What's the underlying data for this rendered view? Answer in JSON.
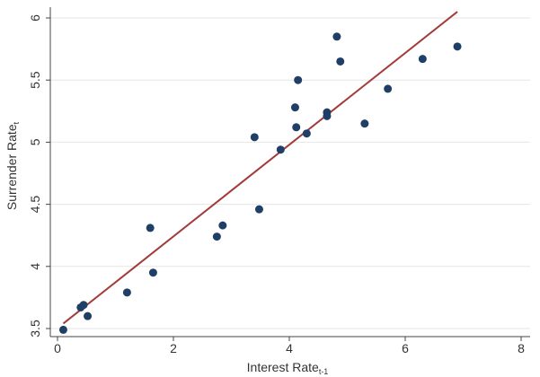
{
  "chart_data": {
    "type": "scatter",
    "xlabel": {
      "main": "Interest Rate",
      "sub": "t-1"
    },
    "ylabel": {
      "main": "Surrender Rate",
      "sub": "t"
    },
    "xlim": [
      0,
      8
    ],
    "ylim": [
      3.5,
      6
    ],
    "x_ticks": [
      0,
      2,
      4,
      6,
      8
    ],
    "y_ticks": [
      3.5,
      4,
      4.5,
      5,
      5.5,
      6
    ],
    "x_tick_labels": [
      "0",
      "2",
      "4",
      "6",
      "8"
    ],
    "y_tick_labels": [
      "3.5",
      "4",
      "4.5",
      "5",
      "5.5",
      "6"
    ],
    "grid": "horizontal",
    "points": [
      {
        "x": 0.1,
        "y": 3.49
      },
      {
        "x": 0.4,
        "y": 3.67
      },
      {
        "x": 0.45,
        "y": 3.69
      },
      {
        "x": 0.52,
        "y": 3.6
      },
      {
        "x": 1.2,
        "y": 3.79
      },
      {
        "x": 1.6,
        "y": 4.31
      },
      {
        "x": 1.65,
        "y": 3.95
      },
      {
        "x": 2.75,
        "y": 4.24
      },
      {
        "x": 2.85,
        "y": 4.33
      },
      {
        "x": 3.4,
        "y": 5.04
      },
      {
        "x": 3.48,
        "y": 4.46
      },
      {
        "x": 3.85,
        "y": 4.94
      },
      {
        "x": 4.1,
        "y": 5.28
      },
      {
        "x": 4.12,
        "y": 5.12
      },
      {
        "x": 4.15,
        "y": 5.5
      },
      {
        "x": 4.3,
        "y": 5.07
      },
      {
        "x": 4.65,
        "y": 5.24
      },
      {
        "x": 4.65,
        "y": 5.21
      },
      {
        "x": 4.82,
        "y": 5.85
      },
      {
        "x": 4.88,
        "y": 5.65
      },
      {
        "x": 5.3,
        "y": 5.15
      },
      {
        "x": 5.7,
        "y": 5.43
      },
      {
        "x": 6.3,
        "y": 5.67
      },
      {
        "x": 6.9,
        "y": 5.77
      }
    ],
    "fit_line": {
      "x": [
        0.1,
        6.9
      ],
      "y": [
        3.54,
        6.05
      ]
    },
    "colors": {
      "points": "#1f3f66",
      "fit_line": "#a33b3b",
      "grid": "#e6e6e6",
      "axis": "#444444"
    }
  }
}
